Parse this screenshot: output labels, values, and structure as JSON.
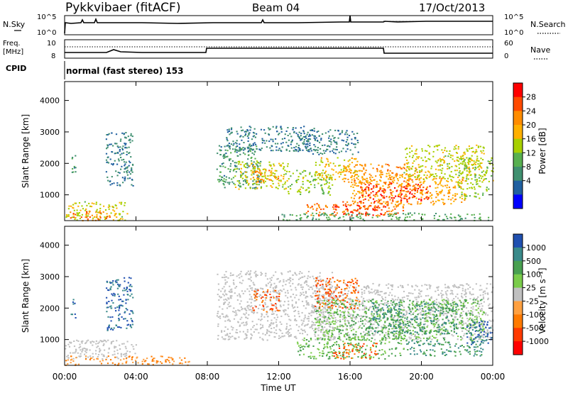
{
  "header": {
    "title": "Pykkvibaer (fitACF)",
    "beam": "Beam 04",
    "date": "17/Oct/2013"
  },
  "sky_panel": {
    "left_label": "N.Sky",
    "left_ticks": [
      "10^5",
      "10^0"
    ],
    "right_label": "N.Search",
    "right_ticks": [
      "10^5",
      "10^0"
    ]
  },
  "freq_panel": {
    "left_label_1": "Freq.",
    "left_label_2": "[MHz]",
    "left_ticks": [
      "10",
      "8"
    ],
    "right_label": "Nave",
    "right_ticks": [
      "60",
      "0"
    ]
  },
  "cpid": {
    "label": "CPID",
    "text": "normal (fast stereo) 153"
  },
  "axes": {
    "ylabel": "Slant Range [km]",
    "xlabel": "Time UT",
    "yticks": [
      "4000",
      "3000",
      "2000",
      "1000"
    ],
    "xticks": [
      "00:00",
      "04:00",
      "08:00",
      "12:00",
      "16:00",
      "20:00",
      "00:00"
    ]
  },
  "power_scale": {
    "label": "Power [dB]",
    "ticks": [
      "28",
      "24",
      "20",
      "16",
      "12",
      "8",
      "4"
    ],
    "colors": [
      "#ff0000",
      "#ff4a00",
      "#ff8c00",
      "#ffb000",
      "#a8d000",
      "#58b050",
      "#409070",
      "#2060a0",
      "#0000ff"
    ]
  },
  "velocity_scale": {
    "label": "Velocity [m s⁻¹]",
    "ticks": [
      "1000",
      "500",
      "100",
      "25",
      "-25",
      "-100",
      "-500",
      "-1000"
    ],
    "colors": [
      "#2050b0",
      "#3a8a8a",
      "#48a050",
      "#7acc4a",
      "#c0c0c0",
      "#ffa040",
      "#ff7a00",
      "#ff3a00",
      "#ff0000"
    ]
  },
  "chart_data": {
    "type": "heatmap",
    "x_range_hours": [
      0,
      24
    ],
    "y_range_km": [
      180,
      4600
    ],
    "power_panel": {
      "regions": [
        {
          "t": [
            0.3,
            0.6
          ],
          "r": [
            1700,
            2300
          ],
          "v": 8
        },
        {
          "t": [
            0.0,
            3.5
          ],
          "r": [
            200,
            800
          ],
          "v": 16
        },
        {
          "t": [
            0.2,
            2.5
          ],
          "r": [
            200,
            500
          ],
          "v": 24
        },
        {
          "t": [
            2.3,
            3.8
          ],
          "r": [
            1300,
            3000
          ],
          "v": 6
        },
        {
          "t": [
            8.5,
            11.0
          ],
          "r": [
            1200,
            2600
          ],
          "v": 8
        },
        {
          "t": [
            9.5,
            12.5
          ],
          "r": [
            1200,
            2100
          ],
          "v": 16
        },
        {
          "t": [
            10.5,
            12.0
          ],
          "r": [
            1400,
            1800
          ],
          "v": 22
        },
        {
          "t": [
            12.5,
            15.0
          ],
          "r": [
            1000,
            1800
          ],
          "v": 14
        },
        {
          "t": [
            14.0,
            16.5
          ],
          "r": [
            1500,
            2200
          ],
          "v": 18
        },
        {
          "t": [
            15.5,
            20.0
          ],
          "r": [
            1400,
            2000
          ],
          "v": 22
        },
        {
          "t": [
            16.0,
            22.5
          ],
          "r": [
            700,
            1600
          ],
          "v": 20
        },
        {
          "t": [
            16.5,
            20.5
          ],
          "r": [
            800,
            1400
          ],
          "v": 28
        },
        {
          "t": [
            19.0,
            23.5
          ],
          "r": [
            1500,
            2600
          ],
          "v": 16
        },
        {
          "t": [
            13.5,
            19.0
          ],
          "r": [
            350,
            800
          ],
          "v": 24
        },
        {
          "t": [
            15.0,
            18.0
          ],
          "r": [
            350,
            700
          ],
          "v": 28
        },
        {
          "t": [
            12.0,
            23.8
          ],
          "r": [
            200,
            450
          ],
          "v": 10
        },
        {
          "t": [
            9.0,
            14.0
          ],
          "r": [
            2400,
            3200
          ],
          "v": 6
        },
        {
          "t": [
            13.0,
            16.5
          ],
          "r": [
            2300,
            3100
          ],
          "v": 6
        },
        {
          "t": [
            22.0,
            24.0
          ],
          "r": [
            900,
            2200
          ],
          "v": 14
        }
      ]
    },
    "velocity_panel": {
      "regions": [
        {
          "t": [
            0.3,
            0.6
          ],
          "r": [
            1700,
            2300
          ],
          "v": 1000
        },
        {
          "t": [
            2.3,
            3.8
          ],
          "r": [
            1300,
            3000
          ],
          "v": 1000
        },
        {
          "t": [
            0.0,
            4.0
          ],
          "r": [
            400,
            1000
          ],
          "v": 0
        },
        {
          "t": [
            0.0,
            7.0
          ],
          "r": [
            200,
            500
          ],
          "v": -100
        },
        {
          "t": [
            8.5,
            15.0
          ],
          "r": [
            1000,
            3200
          ],
          "v": 0
        },
        {
          "t": [
            14.0,
            24.0
          ],
          "r": [
            1000,
            2800
          ],
          "v": 0
        },
        {
          "t": [
            10.5,
            12.0
          ],
          "r": [
            1900,
            2600
          ],
          "v": -500
        },
        {
          "t": [
            14.0,
            16.5
          ],
          "r": [
            2000,
            3000
          ],
          "v": -500
        },
        {
          "t": [
            14.0,
            23.5
          ],
          "r": [
            1000,
            2300
          ],
          "v": 100
        },
        {
          "t": [
            17.0,
            22.0
          ],
          "r": [
            1200,
            2200
          ],
          "v": 500
        },
        {
          "t": [
            13.0,
            19.0
          ],
          "r": [
            400,
            1100
          ],
          "v": 100
        },
        {
          "t": [
            15.0,
            17.5
          ],
          "r": [
            400,
            900
          ],
          "v": -500
        },
        {
          "t": [
            19.0,
            23.5
          ],
          "r": [
            500,
            1000
          ],
          "v": 500
        },
        {
          "t": [
            22.5,
            24.0
          ],
          "r": [
            800,
            1600
          ],
          "v": 1000
        }
      ]
    }
  }
}
